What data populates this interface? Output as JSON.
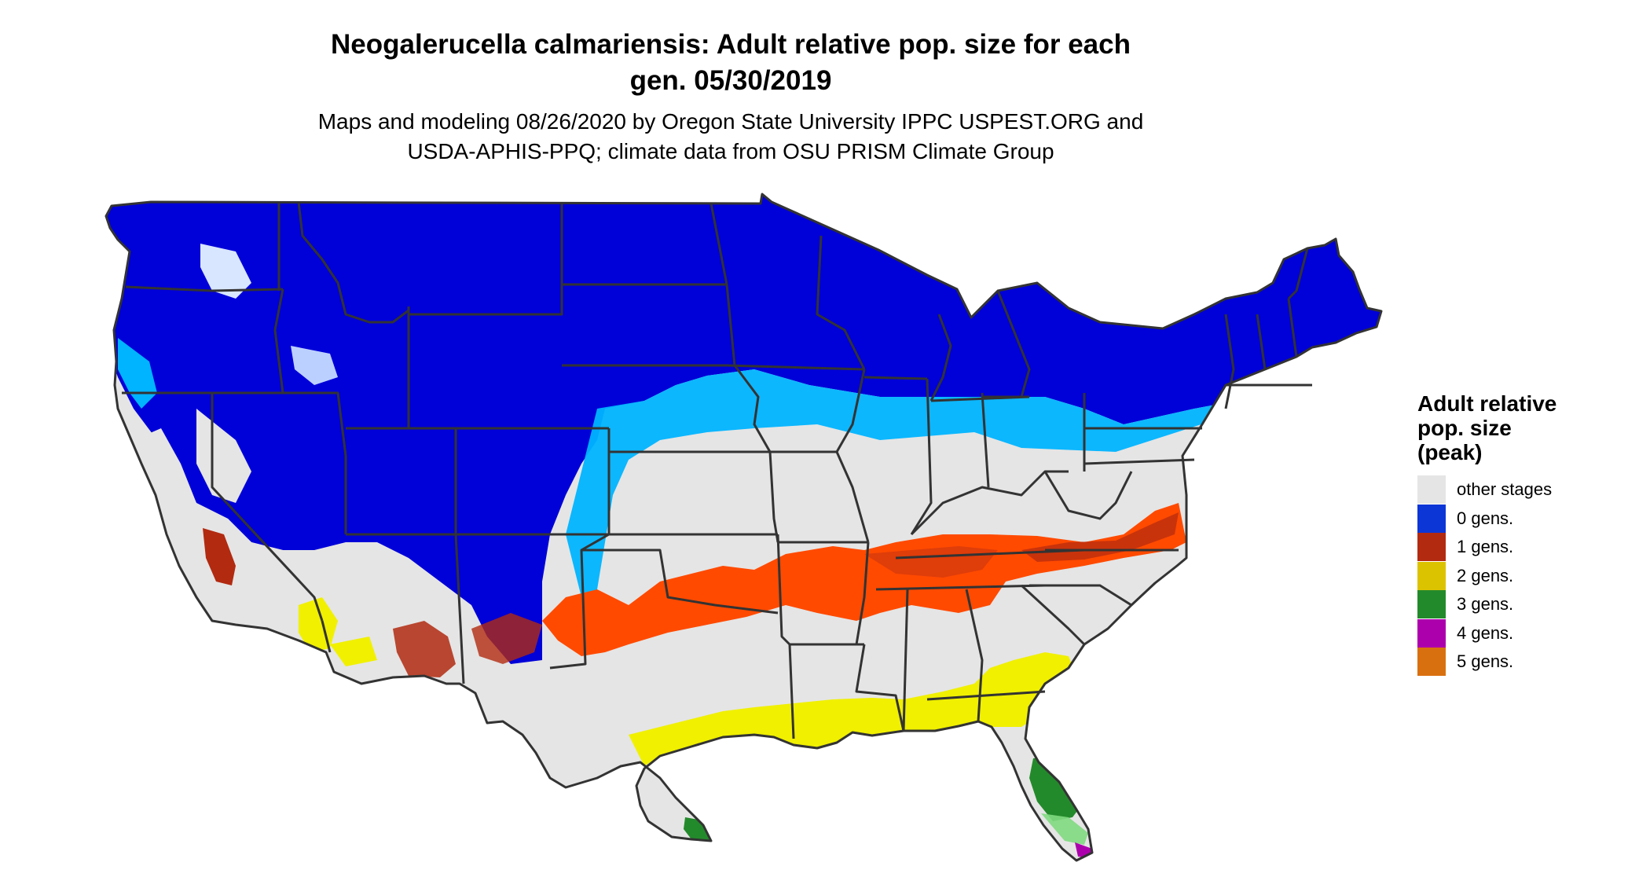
{
  "header": {
    "title_line1": "Neogalerucella calmariensis: Adult relative pop. size for each",
    "title_line2": "gen. 05/30/2019",
    "subtitle_line1": "Maps and modeling 08/26/2020 by Oregon State University IPPC USPEST.ORG and",
    "subtitle_line2": "USDA-APHIS-PPQ; climate data from OSU PRISM Climate Group"
  },
  "legend": {
    "title_line1": "Adult relative",
    "title_line2": "pop. size",
    "title_line3": "(peak)",
    "items": [
      {
        "label": "other stages",
        "color": "#e5e5e5"
      },
      {
        "label": "0 gens.",
        "color": "#0d36d6"
      },
      {
        "label": "1 gens.",
        "color": "#b22a10"
      },
      {
        "label": "2 gens.",
        "color": "#dcc300"
      },
      {
        "label": "3 gens.",
        "color": "#238a2b"
      },
      {
        "label": "4 gens.",
        "color": "#ad00ad"
      },
      {
        "label": "5 gens.",
        "color": "#d9700f"
      }
    ]
  },
  "map": {
    "colors": {
      "north_zone": "#0000d8",
      "transition_zone": "#00b4ff",
      "other_stages": "#e5e5e5",
      "one_gen": "#ff4a00",
      "two_gen": "#f0f000",
      "three_gen": "#238a2b",
      "four_gen": "#ad00ad",
      "borders": "#333333"
    }
  }
}
